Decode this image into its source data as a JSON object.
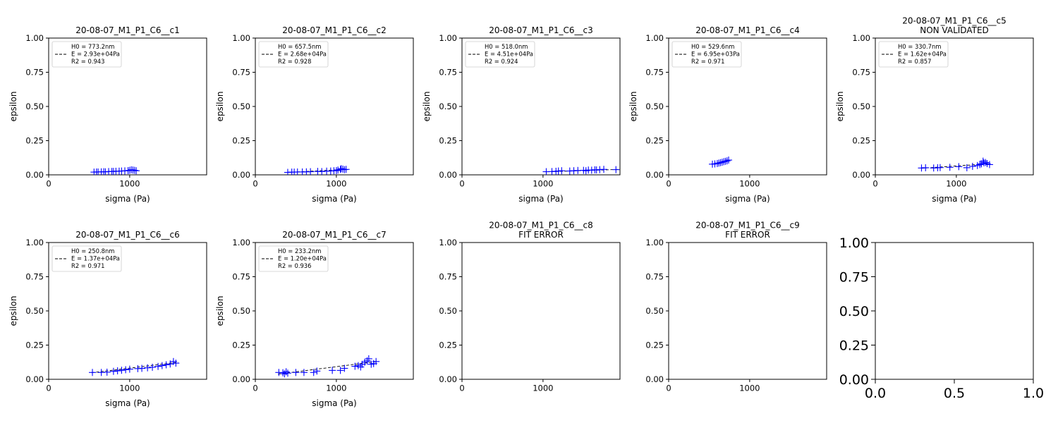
{
  "figure": {
    "colors": {
      "marker": "#0000ff",
      "fit": "#000000",
      "axes": "#000000"
    },
    "grid": false
  },
  "chart_data": [
    {
      "type": "scatter",
      "panel": 0,
      "title": "20-08-07_M1_P1_C6__c1",
      "xlabel": "sigma (Pa)",
      "ylabel": "epsilon",
      "xlim": [
        0,
        1950
      ],
      "ylim": [
        0,
        1
      ],
      "xticks": [
        "0",
        "1000"
      ],
      "yticks": [
        "0.00",
        "0.25",
        "0.50",
        "0.75",
        "1.00"
      ],
      "legend": {
        "location": "upper left",
        "lines": [
          "H0 = 773.2nm",
          "E = 2.93e+04Pa",
          "R2 = 0.943"
        ]
      },
      "series": [
        {
          "name": "fit",
          "kind": "line-dashed",
          "x": [
            560,
            1080
          ],
          "y": [
            0.02,
            0.034
          ]
        },
        {
          "kind": "marker-plus",
          "x": [
            560,
            590,
            610,
            650,
            680,
            700,
            740,
            780,
            800,
            830,
            870,
            900,
            940,
            980,
            1000,
            1020,
            1040,
            1060,
            1080
          ],
          "y": [
            0.02,
            0.021,
            0.021,
            0.022,
            0.023,
            0.022,
            0.024,
            0.025,
            0.025,
            0.026,
            0.027,
            0.028,
            0.029,
            0.031,
            0.033,
            0.037,
            0.035,
            0.033,
            0.03
          ]
        }
      ]
    },
    {
      "type": "scatter",
      "panel": 1,
      "title": "20-08-07_M1_P1_C6__c2",
      "xlabel": "sigma (Pa)",
      "ylabel": "epsilon",
      "xlim": [
        0,
        1950
      ],
      "ylim": [
        0,
        1
      ],
      "xticks": [
        "0",
        "1000"
      ],
      "yticks": [
        "0.00",
        "0.25",
        "0.50",
        "0.75",
        "1.00"
      ],
      "legend": {
        "location": "upper left",
        "lines": [
          "H0 = 657.5nm",
          "E = 2.68e+04Pa",
          "R2 = 0.928"
        ]
      },
      "series": [
        {
          "name": "fit",
          "kind": "line-dashed",
          "x": [
            400,
            1130
          ],
          "y": [
            0.018,
            0.04
          ]
        },
        {
          "kind": "marker-plus",
          "x": [
            400,
            450,
            480,
            520,
            580,
            630,
            680,
            770,
            820,
            880,
            930,
            970,
            1000,
            1020,
            1050,
            1060,
            1080,
            1100,
            1120
          ],
          "y": [
            0.018,
            0.02,
            0.02,
            0.021,
            0.021,
            0.022,
            0.023,
            0.025,
            0.024,
            0.027,
            0.028,
            0.03,
            0.031,
            0.035,
            0.04,
            0.045,
            0.042,
            0.038,
            0.04
          ]
        }
      ]
    },
    {
      "type": "scatter",
      "panel": 2,
      "title": "20-08-07_M1_P1_C6__c3",
      "xlabel": "sigma (Pa)",
      "ylabel": "epsilon",
      "xlim": [
        0,
        1950
      ],
      "ylim": [
        0,
        1
      ],
      "xticks": [
        "0",
        "1000"
      ],
      "yticks": [
        "0.00",
        "0.25",
        "0.50",
        "0.75",
        "1.00"
      ],
      "legend": {
        "location": "upper left",
        "lines": [
          "H0 = 518.0nm",
          "E = 4.51e+04Pa",
          "R2 = 0.924"
        ]
      },
      "series": [
        {
          "name": "fit",
          "kind": "line-dashed",
          "x": [
            1040,
            1950
          ],
          "y": [
            0.022,
            0.04
          ]
        },
        {
          "kind": "marker-plus",
          "x": [
            1040,
            1110,
            1160,
            1190,
            1230,
            1330,
            1380,
            1430,
            1500,
            1530,
            1560,
            1600,
            1640,
            1660,
            1700,
            1750,
            1900
          ],
          "y": [
            0.023,
            0.024,
            0.026,
            0.028,
            0.03,
            0.028,
            0.03,
            0.032,
            0.033,
            0.03,
            0.035,
            0.034,
            0.037,
            0.036,
            0.038,
            0.04,
            0.038
          ]
        }
      ]
    },
    {
      "type": "scatter",
      "panel": 3,
      "title": "20-08-07_M1_P1_C6__c4",
      "xlabel": "sigma (Pa)",
      "ylabel": "epsilon",
      "xlim": [
        0,
        1950
      ],
      "ylim": [
        0,
        1
      ],
      "xticks": [
        "0",
        "1000"
      ],
      "yticks": [
        "0.00",
        "0.25",
        "0.50",
        "0.75",
        "1.00"
      ],
      "legend": {
        "location": "upper left",
        "lines": [
          "H0 = 529.6nm",
          "E = 6.95e+03Pa",
          "R2 = 0.971"
        ]
      },
      "series": [
        {
          "name": "fit",
          "kind": "line-dashed",
          "x": [
            540,
            740
          ],
          "y": [
            0.078,
            0.106
          ]
        },
        {
          "kind": "marker-plus",
          "x": [
            540,
            570,
            600,
            620,
            640,
            660,
            680,
            700,
            720,
            740
          ],
          "y": [
            0.078,
            0.08,
            0.083,
            0.086,
            0.089,
            0.092,
            0.096,
            0.099,
            0.102,
            0.108
          ]
        }
      ]
    },
    {
      "type": "scatter",
      "panel": 4,
      "title": "20-08-07_M1_P1_C6__c5\nNON VALIDATED",
      "xlabel": "sigma (Pa)",
      "ylabel": "epsilon",
      "xlim": [
        0,
        1950
      ],
      "ylim": [
        0,
        1
      ],
      "xticks": [
        "0",
        "1000"
      ],
      "yticks": [
        "0.00",
        "0.25",
        "0.50",
        "0.75",
        "1.00"
      ],
      "legend": {
        "location": "upper left",
        "lines": [
          "H0 = 330.7nm",
          "E = 1.62e+04Pa",
          "R2 = 0.857"
        ]
      },
      "series": [
        {
          "name": "fit",
          "kind": "line-dashed",
          "x": [
            570,
            1420
          ],
          "y": [
            0.048,
            0.082
          ]
        },
        {
          "kind": "marker-plus",
          "x": [
            570,
            620,
            720,
            770,
            800,
            920,
            1030,
            1130,
            1200,
            1260,
            1290,
            1310,
            1330,
            1340,
            1360,
            1380,
            1410
          ],
          "y": [
            0.05,
            0.052,
            0.05,
            0.052,
            0.053,
            0.055,
            0.06,
            0.052,
            0.062,
            0.068,
            0.075,
            0.08,
            0.1,
            0.088,
            0.09,
            0.082,
            0.075
          ]
        }
      ]
    },
    {
      "type": "scatter",
      "panel": 5,
      "title": "20-08-07_M1_P1_C6__c6",
      "xlabel": "sigma (Pa)",
      "ylabel": "epsilon",
      "xlim": [
        0,
        1950
      ],
      "ylim": [
        0,
        1
      ],
      "xticks": [
        "0",
        "1000"
      ],
      "yticks": [
        "0.00",
        "0.25",
        "0.50",
        "0.75",
        "1.00"
      ],
      "legend": {
        "location": "upper left",
        "lines": [
          "H0 = 250.8nm",
          "E = 1.37e+04Pa",
          "R2 = 0.971"
        ]
      },
      "series": [
        {
          "name": "fit",
          "kind": "line-dashed",
          "x": [
            530,
            1600
          ],
          "y": [
            0.048,
            0.125
          ]
        },
        {
          "kind": "marker-plus",
          "x": [
            540,
            650,
            720,
            800,
            850,
            900,
            950,
            1000,
            1100,
            1150,
            1220,
            1280,
            1350,
            1400,
            1450,
            1500,
            1540,
            1570
          ],
          "y": [
            0.05,
            0.05,
            0.052,
            0.058,
            0.062,
            0.066,
            0.07,
            0.074,
            0.078,
            0.08,
            0.084,
            0.088,
            0.094,
            0.1,
            0.106,
            0.112,
            0.13,
            0.118
          ]
        }
      ]
    },
    {
      "type": "scatter",
      "panel": 6,
      "title": "20-08-07_M1_P1_C6__c7",
      "xlabel": "sigma (Pa)",
      "ylabel": "epsilon",
      "xlim": [
        0,
        1950
      ],
      "ylim": [
        0,
        1
      ],
      "xticks": [
        "0",
        "1000"
      ],
      "yticks": [
        "0.00",
        "0.25",
        "0.50",
        "0.75",
        "1.00"
      ],
      "legend": {
        "location": "upper left",
        "lines": [
          "H0 = 233.2nm",
          "E = 1.20e+04Pa",
          "R2 = 0.936"
        ]
      },
      "series": [
        {
          "name": "fit",
          "kind": "line-dashed",
          "x": [
            280,
            1500
          ],
          "y": [
            0.038,
            0.13
          ]
        },
        {
          "kind": "marker-plus",
          "x": [
            290,
            340,
            360,
            380,
            400,
            500,
            600,
            720,
            760,
            950,
            1050,
            1100,
            1230,
            1270,
            1300,
            1320,
            1350,
            1380,
            1400,
            1430,
            1460,
            1490
          ],
          "y": [
            0.05,
            0.048,
            0.04,
            0.055,
            0.045,
            0.05,
            0.05,
            0.05,
            0.06,
            0.065,
            0.065,
            0.08,
            0.095,
            0.1,
            0.09,
            0.11,
            0.125,
            0.135,
            0.15,
            0.11,
            0.115,
            0.13
          ]
        }
      ]
    },
    {
      "type": "scatter",
      "panel": 7,
      "title": "20-08-07_M1_P1_C6__c8\nFIT ERROR",
      "xlabel": "",
      "ylabel": "",
      "xlim": [
        0,
        1950
      ],
      "ylim": [
        0,
        1
      ],
      "xticks": [
        "0",
        "1000"
      ],
      "yticks": [
        "0.00",
        "0.25",
        "0.50",
        "0.75",
        "1.00"
      ],
      "series": []
    },
    {
      "type": "scatter",
      "panel": 8,
      "title": "20-08-07_M1_P1_C6__c9\nFIT ERROR",
      "xlabel": "",
      "ylabel": "",
      "xlim": [
        0,
        1950
      ],
      "ylim": [
        0,
        1
      ],
      "xticks": [
        "0",
        "1000"
      ],
      "yticks": [
        "0.00",
        "0.25",
        "0.50",
        "0.75",
        "1.00"
      ],
      "series": []
    },
    {
      "type": "scatter",
      "panel": 9,
      "title": "",
      "xlabel": "",
      "ylabel": "",
      "xlim": [
        0,
        1
      ],
      "ylim": [
        0,
        1
      ],
      "large_ticks": true,
      "xticks": [
        "0.0",
        "0.5",
        "1.0"
      ],
      "yticks": [
        "0.00",
        "0.25",
        "0.50",
        "0.75",
        "1.00"
      ],
      "series": []
    }
  ]
}
